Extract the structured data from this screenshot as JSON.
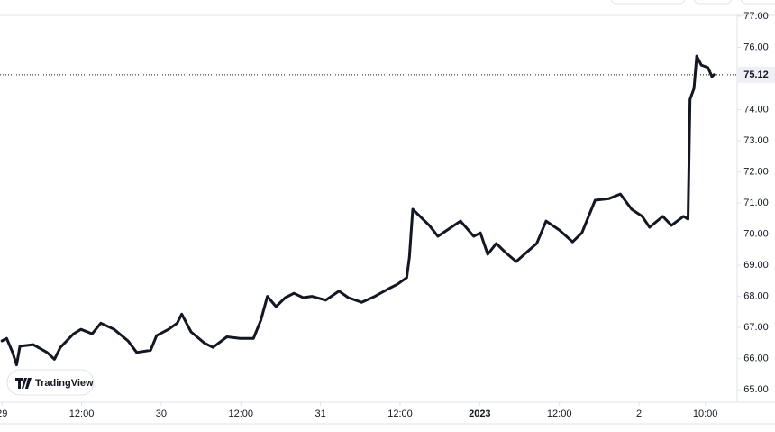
{
  "chart_data": {
    "type": "line",
    "color": "#131722",
    "watermark": "TradingView",
    "last_price": 75.12,
    "x": [
      0,
      0.7,
      1.6,
      2.2,
      2.7,
      4.7,
      6.8,
      7.9,
      8.8,
      10.8,
      11.9,
      13.6,
      14.9,
      16.9,
      19.0,
      20.3,
      22.4,
      23.3,
      25.1,
      26.4,
      27.1,
      28.5,
      30.5,
      31.8,
      33.9,
      35.9,
      37.9,
      39.0,
      40.0,
      41.3,
      42.7,
      44.0,
      45.4,
      46.7,
      48.8,
      50.8,
      52.2,
      54.2,
      56.2,
      58.3,
      59.6,
      61.0,
      61.4,
      61.9,
      63.0,
      64.4,
      65.7,
      67.1,
      69.1,
      71.1,
      72.1,
      73.2,
      74.5,
      75.9,
      77.5,
      79.3,
      80.6,
      82.0,
      84.0,
      86.0,
      87.4,
      89.4,
      91.5,
      93.2,
      94.9,
      96.5,
      97.6,
      99.6,
      100.9,
      102.7,
      103.4,
      103.7,
      104.3,
      104.7,
      105.4,
      106.4,
      107.0,
      107.3
    ],
    "values": [
      66.57,
      66.65,
      66.2,
      65.8,
      66.4,
      66.45,
      66.2,
      65.98,
      66.36,
      66.8,
      66.94,
      66.8,
      67.14,
      66.94,
      66.57,
      66.2,
      66.27,
      66.74,
      66.94,
      67.14,
      67.43,
      66.86,
      66.5,
      66.36,
      66.7,
      66.65,
      66.65,
      67.23,
      68.0,
      67.67,
      67.96,
      68.1,
      67.96,
      68.0,
      67.88,
      68.17,
      67.96,
      67.81,
      68.0,
      68.25,
      68.39,
      68.6,
      69.26,
      70.8,
      70.57,
      70.28,
      69.93,
      70.13,
      70.42,
      69.93,
      70.04,
      69.35,
      69.7,
      69.41,
      69.12,
      69.46,
      69.7,
      70.42,
      70.13,
      69.75,
      70.04,
      71.09,
      71.14,
      71.29,
      70.8,
      70.57,
      70.22,
      70.57,
      70.28,
      70.57,
      70.48,
      74.33,
      74.68,
      75.72,
      75.43,
      75.35,
      75.06,
      75.12
    ],
    "xlim": [
      -0.3,
      110.8
    ],
    "xticks": [
      {
        "value": 0,
        "label": "29"
      },
      {
        "value": 12,
        "label": "12:00"
      },
      {
        "value": 24,
        "label": "30"
      },
      {
        "value": 36,
        "label": "12:00"
      },
      {
        "value": 48,
        "label": "31"
      },
      {
        "value": 60,
        "label": "12:00"
      },
      {
        "value": 72,
        "label": "2023"
      },
      {
        "value": 84,
        "label": "12:00"
      },
      {
        "value": 96,
        "label": "2"
      },
      {
        "value": 106,
        "label": "10:00"
      }
    ],
    "ylim": [
      64.6,
      77.52
    ],
    "yticks": [
      {
        "value": 65,
        "label": "65.00"
      },
      {
        "value": 66,
        "label": "66.00"
      },
      {
        "value": 67,
        "label": "67.00"
      },
      {
        "value": 68,
        "label": "68.00"
      },
      {
        "value": 69,
        "label": "69.00"
      },
      {
        "value": 70,
        "label": "70.00"
      },
      {
        "value": 71,
        "label": "71.00"
      },
      {
        "value": 72,
        "label": "72.00"
      },
      {
        "value": 73,
        "label": "73.00"
      },
      {
        "value": 74,
        "label": "74.00"
      },
      {
        "value": 75,
        "label": "75.00"
      },
      {
        "value": 76,
        "label": "76.00"
      },
      {
        "value": 77,
        "label": "77.00"
      }
    ],
    "grid": false
  }
}
